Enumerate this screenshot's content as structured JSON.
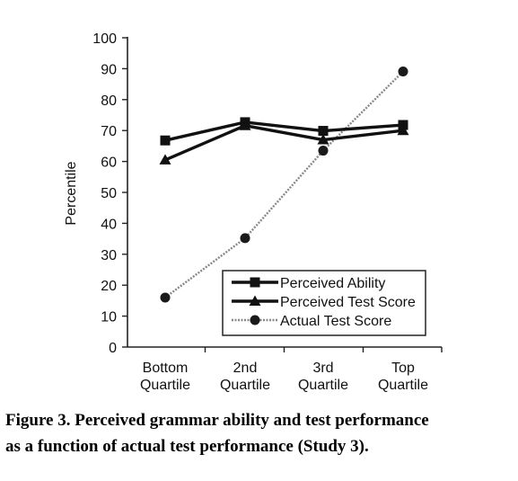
{
  "chart_data": {
    "type": "line",
    "title": "",
    "xlabel": "",
    "ylabel": "Percentile",
    "ylim": [
      0,
      100
    ],
    "yticks": [
      0,
      10,
      20,
      30,
      40,
      50,
      60,
      70,
      80,
      90,
      100
    ],
    "categories": [
      [
        "Bottom",
        "Quartile"
      ],
      [
        "2nd",
        "Quartile"
      ],
      [
        "3rd",
        "Quartile"
      ],
      [
        "Top",
        "Quartile"
      ]
    ],
    "legend_position": "bottom-right",
    "series": [
      {
        "name": "Perceived Ability",
        "values": [
          66.8,
          72.7,
          69.9,
          71.8
        ],
        "marker": "square",
        "color": "#111111",
        "line": "solid-thick"
      },
      {
        "name": "Perceived Test Score",
        "values": [
          60.5,
          71.6,
          67,
          70
        ],
        "marker": "triangle",
        "color": "#111111",
        "line": "solid-thick"
      },
      {
        "name": "Actual Test Score",
        "values": [
          16,
          35.2,
          63.5,
          89.1
        ],
        "marker": "circle",
        "color": "#888888",
        "line": "dotted-gray"
      }
    ]
  },
  "caption": {
    "line1": "Figure 3. Perceived grammar ability and test performance",
    "line2": "as a function of actual test performance (Study 3)."
  }
}
